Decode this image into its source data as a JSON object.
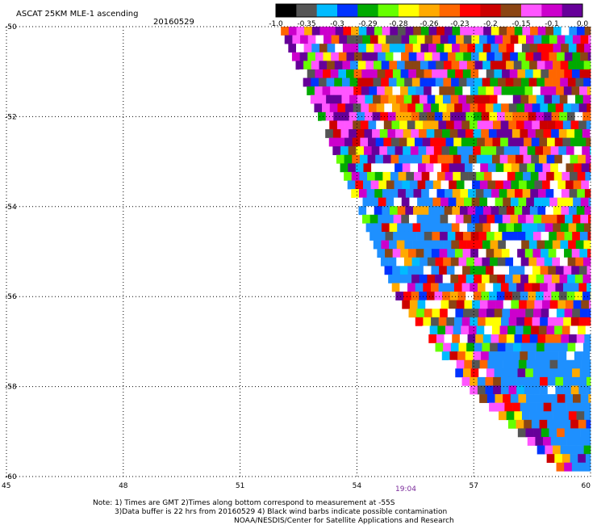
{
  "title": "ASCAT 25KM MLE-1 ascending",
  "date": "20160529",
  "time_label": "19:04",
  "notes": [
    "Note: 1) Times are GMT 2)Times along bottom correspond to measurement at -55S",
    "3)Data buffer is 22 hrs from 20160529 4) Black wind barbs indicate possible contamination",
    "NOAA/NESDIS/Center for Satellite Applications and Research"
  ],
  "legend": {
    "labels": [
      "-1.0",
      "-0.35",
      "-0.3",
      "-0.29",
      "-0.28",
      "-0.26",
      "-0.23",
      "-0.2",
      "-0.15",
      "-0.1",
      "0.0"
    ],
    "colors": [
      "#000000",
      "#555555",
      "#00bbff",
      "#0033ff",
      "#00aa00",
      "#66ff00",
      "#ffff00",
      "#ffaa00",
      "#ff6600",
      "#ff0000",
      "#cc0000",
      "#8b4513",
      "#ff55ff",
      "#cc00cc",
      "#660099"
    ]
  },
  "chart_data": {
    "type": "heatmap",
    "title": "ASCAT 25KM MLE-1 ascending",
    "subtitle": "20160529",
    "xlabel": "",
    "ylabel": "",
    "x_ticks": [
      "45",
      "48",
      "51",
      "54",
      "57",
      "60"
    ],
    "y_ticks": [
      "-50",
      "-52",
      "-54",
      "-56",
      "-58",
      "-60"
    ],
    "xlim": [
      45,
      60
    ],
    "ylim": [
      -60,
      -50
    ],
    "grid": true,
    "swath": {
      "top_edge": [
        [
          52.0,
          -50
        ],
        [
          60,
          -50
        ]
      ],
      "bottom_edge": [
        [
          59.4,
          -60
        ],
        [
          60,
          -60
        ]
      ],
      "west_edge": [
        [
          52.0,
          -50
        ],
        [
          53.0,
          -52
        ],
        [
          54.0,
          -54
        ],
        [
          55.0,
          -56
        ],
        [
          56.8,
          -58
        ],
        [
          59.4,
          -60
        ]
      ]
    },
    "color_scale": [
      "-1.0",
      "-0.35",
      "-0.3",
      "-0.29",
      "-0.28",
      "-0.26",
      "-0.23",
      "-0.2",
      "-0.15",
      "-0.1",
      "0.0"
    ]
  }
}
